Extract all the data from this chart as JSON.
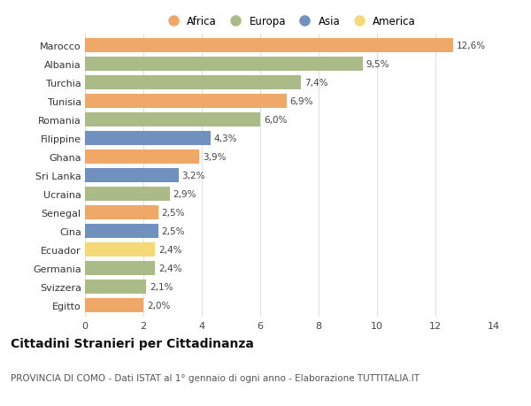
{
  "countries": [
    "Marocco",
    "Albania",
    "Turchia",
    "Tunisia",
    "Romania",
    "Filippine",
    "Ghana",
    "Sri Lanka",
    "Ucraina",
    "Senegal",
    "Cina",
    "Ecuador",
    "Germania",
    "Svizzera",
    "Egitto"
  ],
  "values": [
    12.6,
    9.5,
    7.4,
    6.9,
    6.0,
    4.3,
    3.9,
    3.2,
    2.9,
    2.5,
    2.5,
    2.4,
    2.4,
    2.1,
    2.0
  ],
  "labels": [
    "12,6%",
    "9,5%",
    "7,4%",
    "6,9%",
    "6,0%",
    "4,3%",
    "3,9%",
    "3,2%",
    "2,9%",
    "2,5%",
    "2,5%",
    "2,4%",
    "2,4%",
    "2,1%",
    "2,0%"
  ],
  "continents": [
    "Africa",
    "Europa",
    "Europa",
    "Africa",
    "Europa",
    "Asia",
    "Africa",
    "Asia",
    "Europa",
    "Africa",
    "Asia",
    "America",
    "Europa",
    "Europa",
    "Africa"
  ],
  "colors": {
    "Africa": "#F0A868",
    "Europa": "#AABB88",
    "Asia": "#7090C0",
    "America": "#F5D878"
  },
  "xlim": [
    0,
    14
  ],
  "xticks": [
    0,
    2,
    4,
    6,
    8,
    10,
    12,
    14
  ],
  "background_color": "#ffffff",
  "grid_color": "#e0e0e0",
  "title": "Cittadini Stranieri per Cittadinanza",
  "subtitle": "PROVINCIA DI COMO - Dati ISTAT al 1° gennaio di ogni anno - Elaborazione TUTTITALIA.IT",
  "title_fontsize": 10,
  "subtitle_fontsize": 7.5,
  "bar_height": 0.75,
  "label_fontsize": 7.5,
  "ytick_fontsize": 8,
  "xtick_fontsize": 8,
  "legend_order": [
    "Africa",
    "Europa",
    "Asia",
    "America"
  ]
}
